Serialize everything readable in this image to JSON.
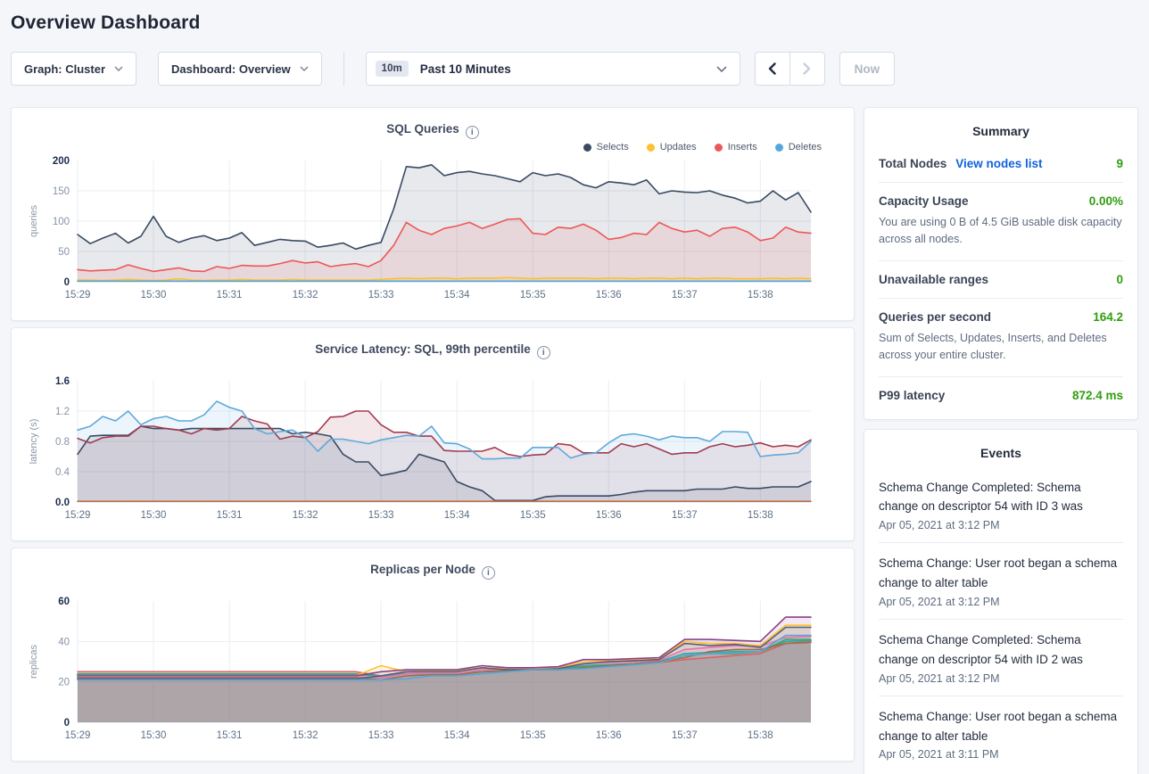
{
  "page": {
    "title": "Overview Dashboard"
  },
  "colors": {
    "accent_green": "#2f9e0e",
    "link_blue": "#0e63dd"
  },
  "toolbar": {
    "graph_dropdown": "Graph: Cluster",
    "dashboard_dropdown": "Dashboard: Overview",
    "range_badge": "10m",
    "range_label": "Past 10 Minutes",
    "now_label": "Now"
  },
  "summary": {
    "title": "Summary",
    "rows": [
      {
        "label": "Total Nodes",
        "link": "View nodes list",
        "value": "9"
      },
      {
        "label": "Capacity Usage",
        "value": "0.00%",
        "description": "You are using 0 B of 4.5 GiB usable disk capacity across all nodes."
      },
      {
        "label": "Unavailable ranges",
        "value": "0"
      },
      {
        "label": "Queries per second",
        "value": "164.2",
        "description": "Sum of Selects, Updates, Inserts, and Deletes across your entire cluster."
      },
      {
        "label": "P99 latency",
        "value": "872.4 ms"
      }
    ]
  },
  "events": {
    "title": "Events",
    "items": [
      {
        "message": "Schema Change Completed: Schema change on descriptor 54 with ID 3 was",
        "timestamp": "Apr 05, 2021 at 3:12 PM"
      },
      {
        "message": "Schema Change: User root began a schema change to alter table",
        "timestamp": "Apr 05, 2021 at 3:12 PM"
      },
      {
        "message": "Schema Change Completed: Schema change on descriptor 54 with ID 2 was",
        "timestamp": "Apr 05, 2021 at 3:12 PM"
      },
      {
        "message": "Schema Change: User root began a schema change to alter table",
        "timestamp": "Apr 05, 2021 at 3:11 PM"
      }
    ]
  },
  "chart_data": [
    {
      "type": "area",
      "title": "SQL Queries",
      "ylabel": "queries",
      "ylim": [
        0,
        200
      ],
      "yticks": [
        "0",
        "50",
        "100",
        "150",
        "200"
      ],
      "xticks": [
        "15:29",
        "15:30",
        "15:31",
        "15:32",
        "15:33",
        "15:34",
        "15:35",
        "15:36",
        "15:37",
        "15:38"
      ],
      "tick_every": 6,
      "grid": true,
      "legend_position": "top-right",
      "legend": [
        {
          "name": "Selects",
          "color": "#394a63"
        },
        {
          "name": "Updates",
          "color": "#fdc12f"
        },
        {
          "name": "Inserts",
          "color": "#ee5758"
        },
        {
          "name": "Deletes",
          "color": "#55a7dc"
        }
      ],
      "series": [
        {
          "name": "Selects",
          "color": "#394a63",
          "values": [
            78,
            63,
            72,
            80,
            64,
            75,
            108,
            75,
            65,
            72,
            76,
            68,
            72,
            81,
            60,
            65,
            70,
            68,
            67,
            57,
            60,
            64,
            54,
            60,
            65,
            120,
            190,
            188,
            193,
            175,
            180,
            182,
            178,
            175,
            170,
            165,
            180,
            175,
            178,
            172,
            160,
            155,
            165,
            163,
            160,
            168,
            145,
            150,
            148,
            147,
            150,
            143,
            138,
            130,
            133,
            150,
            135,
            147,
            115
          ]
        },
        {
          "name": "Inserts",
          "color": "#ee5758",
          "values": [
            20,
            18,
            19,
            20,
            28,
            22,
            17,
            20,
            23,
            18,
            17,
            25,
            22,
            27,
            26,
            26,
            30,
            35,
            31,
            33,
            25,
            28,
            30,
            25,
            35,
            60,
            98,
            85,
            78,
            88,
            92,
            98,
            88,
            95,
            103,
            104,
            80,
            78,
            90,
            88,
            95,
            85,
            70,
            73,
            80,
            78,
            98,
            88,
            82,
            85,
            75,
            88,
            90,
            82,
            68,
            72,
            90,
            82,
            80
          ]
        },
        {
          "name": "Updates",
          "color": "#fdc12f",
          "values": [
            3,
            3,
            2,
            3,
            4,
            3,
            2,
            3,
            5,
            3,
            2,
            3,
            3,
            4,
            3,
            3,
            3,
            4,
            3,
            3,
            3,
            3,
            3,
            3,
            4,
            5,
            6,
            5,
            6,
            6,
            5,
            6,
            6,
            6,
            7,
            6,
            5,
            6,
            6,
            6,
            6,
            5,
            6,
            6,
            5,
            6,
            6,
            5,
            6,
            5,
            6,
            6,
            5,
            5,
            5,
            6,
            5,
            6,
            5
          ]
        },
        {
          "name": "Deletes",
          "color": "#55a7dc",
          "values": [
            1,
            1,
            1,
            1,
            1,
            1,
            1,
            1,
            1,
            1,
            1,
            1,
            1,
            1,
            1,
            1,
            1,
            1,
            1,
            1,
            1,
            1,
            1,
            1,
            1,
            1,
            1,
            1,
            1,
            1,
            1,
            1,
            1,
            1,
            1,
            1,
            1,
            1,
            1,
            1,
            1,
            1,
            1,
            1,
            1,
            1,
            1,
            1,
            1,
            1,
            1,
            1,
            1,
            1,
            1,
            1,
            1,
            1,
            1
          ]
        }
      ]
    },
    {
      "type": "area",
      "title": "Service Latency: SQL, 99th percentile",
      "ylabel": "latency (s)",
      "ylim": [
        0,
        1.6
      ],
      "yticks": [
        "0.0",
        "0.4",
        "0.8",
        "1.2",
        "1.6"
      ],
      "xticks": [
        "15:29",
        "15:30",
        "15:31",
        "15:32",
        "15:33",
        "15:34",
        "15:35",
        "15:36",
        "15:37",
        "15:38"
      ],
      "tick_every": 6,
      "grid": true,
      "series": [
        {
          "color": "#394a63",
          "values": [
            0.63,
            0.87,
            0.88,
            0.88,
            0.88,
            1.0,
            0.97,
            0.97,
            0.95,
            0.97,
            0.97,
            0.97,
            0.97,
            0.97,
            0.97,
            0.97,
            0.97,
            0.9,
            0.92,
            0.9,
            0.87,
            0.63,
            0.53,
            0.53,
            0.35,
            0.38,
            0.42,
            0.63,
            0.58,
            0.53,
            0.27,
            0.2,
            0.15,
            0.02,
            0.02,
            0.02,
            0.02,
            0.07,
            0.08,
            0.08,
            0.08,
            0.08,
            0.08,
            0.1,
            0.13,
            0.15,
            0.15,
            0.15,
            0.15,
            0.17,
            0.17,
            0.17,
            0.2,
            0.18,
            0.18,
            0.2,
            0.2,
            0.2,
            0.27
          ]
        },
        {
          "color": "#a23c52",
          "values": [
            0.84,
            0.78,
            0.85,
            0.87,
            0.87,
            1.0,
            1.0,
            0.97,
            0.95,
            0.9,
            0.97,
            0.95,
            0.97,
            1.13,
            1.07,
            1.03,
            0.83,
            0.87,
            0.85,
            0.93,
            1.12,
            1.13,
            1.2,
            1.2,
            1.02,
            0.92,
            0.92,
            0.87,
            0.87,
            0.68,
            0.67,
            0.67,
            0.67,
            0.72,
            0.63,
            0.6,
            0.62,
            0.63,
            0.77,
            0.75,
            0.65,
            0.65,
            0.65,
            0.77,
            0.73,
            0.77,
            0.7,
            0.63,
            0.65,
            0.65,
            0.73,
            0.77,
            0.73,
            0.75,
            0.78,
            0.73,
            0.75,
            0.73,
            0.82
          ]
        },
        {
          "color": "#5fa9db",
          "values": [
            0.95,
            1.0,
            1.13,
            1.07,
            1.2,
            1.02,
            1.1,
            1.13,
            1.07,
            1.07,
            1.15,
            1.33,
            1.25,
            1.2,
            0.97,
            0.9,
            0.93,
            0.95,
            0.85,
            0.67,
            0.83,
            0.83,
            0.8,
            0.77,
            0.82,
            0.85,
            0.88,
            0.87,
            1.0,
            0.78,
            0.77,
            0.7,
            0.57,
            0.57,
            0.58,
            0.58,
            0.72,
            0.72,
            0.72,
            0.58,
            0.63,
            0.65,
            0.78,
            0.88,
            0.9,
            0.87,
            0.82,
            0.87,
            0.85,
            0.85,
            0.8,
            0.93,
            0.93,
            0.92,
            0.6,
            0.62,
            0.63,
            0.65,
            0.8
          ]
        },
        {
          "color": "#bd7247",
          "values": [
            0.01,
            0.01,
            0.01,
            0.01,
            0.01,
            0.01,
            0.01,
            0.01,
            0.01,
            0.01,
            0.01,
            0.01,
            0.01,
            0.01,
            0.01,
            0.01,
            0.01,
            0.01,
            0.01,
            0.01,
            0.01,
            0.01,
            0.01,
            0.01,
            0.01,
            0.01,
            0.01,
            0.01,
            0.01,
            0.01,
            0.01,
            0.01,
            0.01,
            0.01,
            0.01,
            0.01,
            0.01,
            0.01,
            0.01,
            0.01,
            0.01,
            0.01,
            0.01,
            0.01,
            0.01,
            0.01,
            0.01,
            0.01,
            0.01,
            0.01,
            0.01,
            0.01,
            0.01,
            0.01,
            0.01,
            0.01,
            0.01,
            0.01,
            0.01
          ]
        }
      ]
    },
    {
      "type": "area",
      "title": "Replicas per Node",
      "ylabel": "replicas",
      "ylim": [
        0,
        60
      ],
      "yticks": [
        "0",
        "20",
        "40",
        "60"
      ],
      "xticks": [
        "15:29",
        "15:30",
        "15:31",
        "15:32",
        "15:33",
        "15:34",
        "15:35",
        "15:36",
        "15:37",
        "15:38"
      ],
      "tick_every": 3,
      "grid": true,
      "series": [
        {
          "color": "#e0605e",
          "values": [
            25,
            25,
            25,
            25,
            25,
            25,
            25,
            25,
            25,
            25,
            25,
            25,
            23,
            25,
            25.5,
            25.5,
            27,
            26,
            26,
            26.5,
            28,
            28.5,
            29,
            29.5,
            31,
            32,
            33,
            34,
            39,
            40
          ]
        },
        {
          "color": "#3fa66d",
          "values": [
            24,
            24,
            24,
            24,
            24,
            24,
            24,
            24,
            24,
            24,
            24,
            24,
            23,
            24,
            24,
            24,
            25,
            25.5,
            26,
            26,
            27.5,
            28,
            28.5,
            29.5,
            33,
            34,
            34,
            35,
            41,
            41
          ]
        },
        {
          "color": "#2fa8a0",
          "values": [
            23.5,
            23.5,
            23.5,
            23.5,
            23.5,
            23.5,
            23.5,
            23.5,
            23.5,
            23.5,
            23.5,
            23.5,
            23,
            24,
            24,
            24,
            25,
            25.5,
            26,
            26,
            28,
            28.5,
            29,
            30,
            34,
            34.5,
            35,
            35,
            40,
            40.5
          ]
        },
        {
          "color": "#ffc12e",
          "values": [
            23,
            23,
            23,
            23,
            23,
            23,
            23,
            23,
            23,
            23,
            23,
            23,
            28,
            25,
            25.5,
            25.5,
            27,
            26.5,
            26.5,
            27,
            30,
            30.5,
            31,
            31.5,
            40,
            39,
            39,
            38,
            48,
            48
          ]
        },
        {
          "color": "#8c3f8c",
          "values": [
            23,
            23,
            23,
            23,
            23,
            23,
            23,
            23,
            23,
            23,
            23,
            23,
            25,
            26,
            26,
            26,
            28,
            27,
            27,
            27.5,
            31,
            31,
            31.5,
            32,
            41,
            41,
            40.5,
            40,
            52,
            52
          ]
        },
        {
          "color": "#e871ae",
          "values": [
            22.5,
            22.5,
            22.5,
            22.5,
            22.5,
            22.5,
            22.5,
            22.5,
            22.5,
            22.5,
            22.5,
            22.5,
            22,
            24,
            24,
            24,
            26,
            26,
            26,
            26.5,
            29,
            29.5,
            30,
            30.5,
            36,
            37,
            38,
            37.5,
            42,
            42.5
          ]
        },
        {
          "color": "#9c6f49",
          "values": [
            22,
            22,
            22,
            22,
            22,
            22,
            22,
            22,
            22,
            22,
            22,
            22,
            21,
            23,
            23.5,
            23.5,
            25,
            25.5,
            26,
            26,
            27,
            28,
            29,
            30,
            32,
            35,
            36,
            36,
            39,
            39.5
          ]
        },
        {
          "color": "#53617d",
          "values": [
            21.5,
            21.5,
            21.5,
            21.5,
            21.5,
            21.5,
            21.5,
            21.5,
            21.5,
            21.5,
            21.5,
            21.5,
            23,
            25,
            25,
            25,
            27,
            26,
            26,
            26.5,
            29,
            30,
            30.5,
            31,
            39,
            38,
            38.5,
            37,
            47,
            47
          ]
        },
        {
          "color": "#58a6d6",
          "values": [
            21,
            21,
            21,
            21,
            21,
            21,
            21,
            21,
            21,
            21,
            21,
            21,
            21,
            21.5,
            23,
            23,
            24,
            25,
            26,
            26,
            26.5,
            27.5,
            28.5,
            29.5,
            33,
            34,
            34.5,
            35,
            43,
            43
          ]
        }
      ]
    }
  ]
}
